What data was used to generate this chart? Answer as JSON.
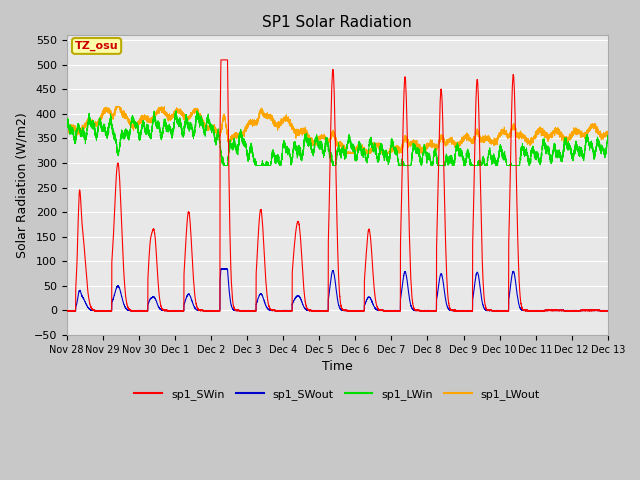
{
  "title": "SP1 Solar Radiation",
  "xlabel": "Time",
  "ylabel": "Solar Radiation (W/m2)",
  "ylim": [
    -50,
    560
  ],
  "yticks": [
    -50,
    0,
    50,
    100,
    150,
    200,
    250,
    300,
    350,
    400,
    450,
    500,
    550
  ],
  "colors": {
    "SWin": "#ff0000",
    "SWout": "#0000cc",
    "LWin": "#00dd00",
    "LWout": "#ffa500"
  },
  "fig_bg": "#c8c8c8",
  "plot_bg": "#e8e8e8",
  "grid_color": "#ffffff",
  "annotation_text": "TZ_osu",
  "annotation_bg": "#ffffaa",
  "annotation_border": "#bbaa00",
  "legend_labels": [
    "sp1_SWin",
    "sp1_SWout",
    "sp1_LWin",
    "sp1_LWout"
  ],
  "xtick_labels": [
    "Nov 28",
    "Nov 29",
    "Nov 30",
    "Dec 1",
    "Dec 2",
    "Dec 3",
    "Dec 4",
    "Dec 5",
    "Dec 6",
    "Dec 7",
    "Dec 8",
    "Dec 9",
    "Dec 10",
    "Dec 11",
    "Dec 12",
    "Dec 13"
  ],
  "n_points": 7200
}
